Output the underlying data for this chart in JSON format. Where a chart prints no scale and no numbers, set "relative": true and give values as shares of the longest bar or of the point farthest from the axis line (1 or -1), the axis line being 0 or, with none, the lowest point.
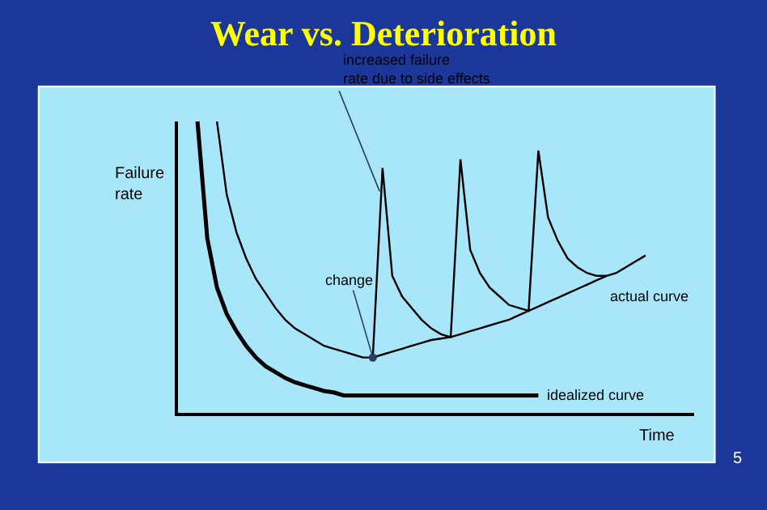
{
  "chart_data": {
    "type": "line",
    "title": "Wear vs. Deterioration",
    "xlabel": "Time",
    "ylabel": "Failure rate",
    "relative": true,
    "grid": false,
    "legend": false,
    "categories": [
      null,
      null,
      null,
      null,
      null,
      null,
      null,
      null,
      null,
      null,
      null,
      null,
      null,
      null,
      null,
      null,
      null,
      null,
      null,
      null,
      null,
      null,
      null,
      null,
      null,
      null,
      null,
      null,
      null,
      null,
      null,
      null,
      null,
      null,
      null,
      null,
      null,
      null,
      null,
      null,
      null,
      null,
      null,
      null,
      null,
      null,
      null,
      null,
      null,
      null
    ],
    "series": [
      {
        "name": "idealized curve",
        "color": "#000000",
        "values": [
          null,
          1,
          0.6,
          0.43,
          0.34,
          0.28,
          0.23,
          0.19,
          0.16,
          0.14,
          0.12,
          0.105,
          0.095,
          0.085,
          0.075,
          0.07,
          0.06,
          0.06,
          0.06,
          0.06,
          0.06,
          0.06,
          0.06,
          0.06,
          0.06,
          0.06,
          0.06,
          0.06,
          0.06,
          0.06,
          0.06,
          0.06,
          0.06,
          0.06,
          0.06,
          0.06,
          0.06,
          null,
          null,
          null,
          null,
          null,
          null,
          null,
          null,
          null,
          null,
          null,
          null,
          null
        ]
      },
      {
        "name": "actual curve",
        "color": "#000000",
        "values": [
          null,
          null,
          null,
          1,
          0.75,
          0.62,
          0.53,
          0.46,
          0.41,
          0.36,
          0.32,
          0.29,
          0.27,
          0.25,
          0.23,
          0.22,
          0.21,
          0.2,
          0.19,
          0.19,
          0.84,
          0.47,
          0.4,
          0.36,
          0.32,
          0.29,
          0.27,
          0.26,
          0.87,
          0.56,
          0.48,
          0.43,
          0.4,
          0.37,
          0.36,
          0.35,
          0.9,
          0.67,
          0.59,
          0.53,
          0.5,
          0.48,
          0.47,
          0.47,
          0.48,
          0.5,
          0.52,
          0.54,
          null,
          null
        ]
      },
      {
        "color": "#000000",
        "values": [
          null,
          null,
          null,
          null,
          null,
          null,
          null,
          null,
          null,
          null,
          null,
          null,
          null,
          null,
          null,
          null,
          null,
          null,
          null,
          0.19,
          0.2,
          0.21,
          0.22,
          0.23,
          0.24,
          0.25,
          0.255,
          0.26,
          0.27,
          0.28,
          0.29,
          0.3,
          0.31,
          0.32,
          0.335,
          0.35,
          0.365,
          0.38,
          0.395,
          0.41,
          0.425,
          0.44,
          0.455,
          0.47,
          null,
          null,
          null,
          null,
          null,
          null
        ]
      }
    ],
    "annotations": [
      "increased failure rate due to side effects",
      "change",
      "5"
    ]
  }
}
